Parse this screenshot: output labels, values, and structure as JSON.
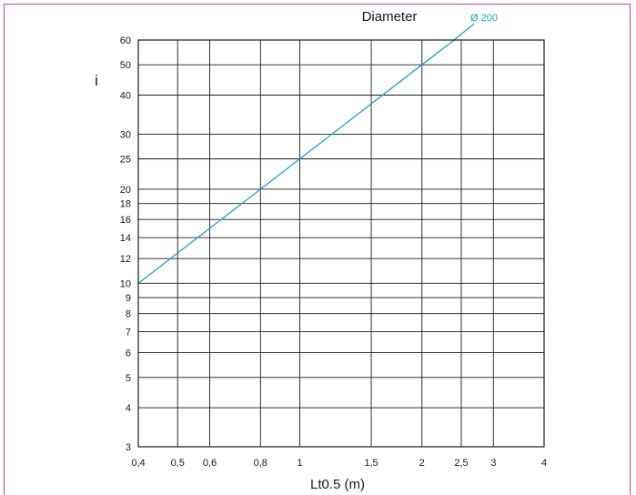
{
  "chart_data": {
    "type": "line",
    "title": "Diameter",
    "xlabel": "Lt0.5 (m)",
    "ylabel": "i",
    "x_scale": "log",
    "y_scale": "log",
    "xlim": [
      0.4,
      4
    ],
    "ylim": [
      3,
      60
    ],
    "x_ticks": [
      {
        "value": 0.4,
        "label": "0,4"
      },
      {
        "value": 0.5,
        "label": "0,5"
      },
      {
        "value": 0.6,
        "label": "0,6"
      },
      {
        "value": 0.8,
        "label": "0,8"
      },
      {
        "value": 1,
        "label": "1"
      },
      {
        "value": 1.5,
        "label": "1,5"
      },
      {
        "value": 2,
        "label": "2"
      },
      {
        "value": 2.5,
        "label": "2,5"
      },
      {
        "value": 3,
        "label": "3"
      },
      {
        "value": 4,
        "label": "4"
      }
    ],
    "y_ticks": [
      {
        "value": 3,
        "label": "3"
      },
      {
        "value": 4,
        "label": "4"
      },
      {
        "value": 5,
        "label": "5"
      },
      {
        "value": 6,
        "label": "6"
      },
      {
        "value": 7,
        "label": "7"
      },
      {
        "value": 8,
        "label": "8"
      },
      {
        "value": 9,
        "label": "9"
      },
      {
        "value": 10,
        "label": "10"
      },
      {
        "value": 12,
        "label": "12"
      },
      {
        "value": 14,
        "label": "14"
      },
      {
        "value": 16,
        "label": "16"
      },
      {
        "value": 18,
        "label": "18"
      },
      {
        "value": 20,
        "label": "20"
      },
      {
        "value": 25,
        "label": "25"
      },
      {
        "value": 30,
        "label": "30"
      },
      {
        "value": 40,
        "label": "40"
      },
      {
        "value": 50,
        "label": "50"
      },
      {
        "value": 60,
        "label": "60"
      }
    ],
    "grid": true,
    "series": [
      {
        "name": "Ø 200",
        "color": "#1aa3cc",
        "x": [
          0.4,
          0.8,
          1,
          2,
          2.4
        ],
        "y": [
          10,
          20,
          25,
          50,
          60
        ]
      }
    ]
  }
}
